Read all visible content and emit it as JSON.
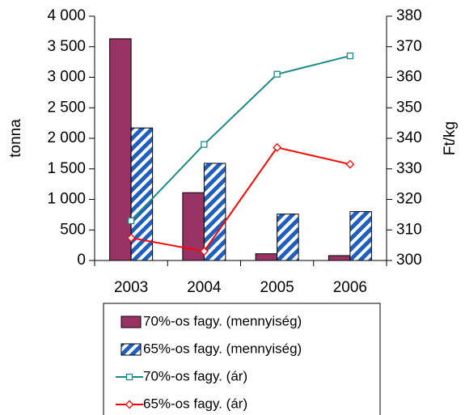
{
  "chart_data": {
    "type": "bar_line",
    "y_label": "tonna",
    "y2_label": "Ft/kg",
    "categories": [
      "2003",
      "2004",
      "2005",
      "2006"
    ],
    "ylim": [
      0,
      4000
    ],
    "yticks": [
      0,
      {
        "value": 500,
        "label": "500"
      },
      {
        "value": 1000,
        "label": "1 000"
      },
      {
        "value": 1500,
        "label": "1 500"
      },
      {
        "value": 2000,
        "label": "2 000"
      },
      {
        "value": 2500,
        "label": "2 500"
      },
      {
        "value": 3000,
        "label": "3 000"
      },
      {
        "value": 3500,
        "label": "3 500"
      },
      {
        "value": 4000,
        "label": "4 000"
      }
    ],
    "y2lim": [
      300,
      380
    ],
    "y2ticks": [
      300,
      310,
      320,
      330,
      340,
      350,
      360,
      370,
      380
    ],
    "series": [
      {
        "name": "70%-os fagy. (mennyiség)",
        "type": "bar",
        "color": "#993366",
        "values": [
          3630,
          1110,
          110,
          80
        ]
      },
      {
        "name": "65%-os fagy. (mennyiség)",
        "type": "bar",
        "color": "#1f5fbf",
        "hatch": true,
        "values": [
          2170,
          1590,
          760,
          800
        ]
      },
      {
        "name": "70%-os fagy. (ár)",
        "type": "line",
        "axis": "y2",
        "marker": "square",
        "color": "#1a8a8a",
        "values": [
          313,
          338,
          361,
          367
        ]
      },
      {
        "name": "65%-os fagy. (ár)",
        "type": "line",
        "axis": "y2",
        "marker": "diamond",
        "color": "#ff0000",
        "values": [
          307.4,
          303,
          337,
          331.5
        ]
      }
    ]
  }
}
